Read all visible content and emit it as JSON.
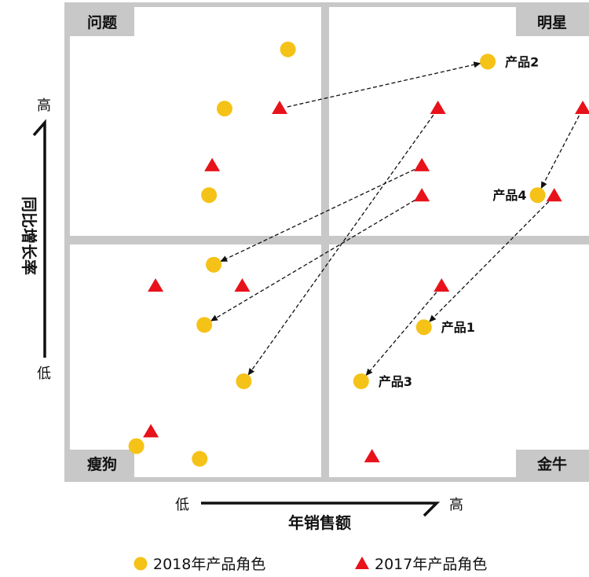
{
  "chart_data": {
    "type": "scatter",
    "xlabel": "年销售额",
    "ylabel": "同比增长率",
    "x_low": "低",
    "x_high": "高",
    "y_low": "低",
    "y_high": "高",
    "quadrants": {
      "top_left": "问题",
      "top_right": "明星",
      "bottom_left": "瘦狗",
      "bottom_right": "金牛"
    },
    "xlim": [
      0,
      100
    ],
    "ylim": [
      0,
      100
    ],
    "series": [
      {
        "name": "2018年产品角色",
        "marker": "circle",
        "color": "#F5C218",
        "points": [
          {
            "x": 42.0,
            "y": 91.0,
            "label": ""
          },
          {
            "x": 29.8,
            "y": 78.4,
            "label": ""
          },
          {
            "x": 26.8,
            "y": 60.0,
            "label": ""
          },
          {
            "x": 80.5,
            "y": 88.4,
            "label": "产品2"
          },
          {
            "x": 90.1,
            "y": 60.0,
            "label": "产品4"
          },
          {
            "x": 27.7,
            "y": 45.2,
            "label": ""
          },
          {
            "x": 25.9,
            "y": 32.4,
            "label": ""
          },
          {
            "x": 33.5,
            "y": 20.4,
            "label": ""
          },
          {
            "x": 68.2,
            "y": 31.9,
            "label": "产品1"
          },
          {
            "x": 56.1,
            "y": 20.4,
            "label": "产品3"
          },
          {
            "x": 12.8,
            "y": 6.6,
            "label": ""
          },
          {
            "x": 25.0,
            "y": 3.9,
            "label": ""
          }
        ]
      },
      {
        "name": "2017年产品角色",
        "marker": "triangle",
        "color": "#E8121A",
        "points": [
          {
            "x": 40.4,
            "y": 78.4
          },
          {
            "x": 70.9,
            "y": 78.4
          },
          {
            "x": 98.8,
            "y": 78.4
          },
          {
            "x": 27.4,
            "y": 66.2
          },
          {
            "x": 67.8,
            "y": 66.2
          },
          {
            "x": 67.8,
            "y": 59.8
          },
          {
            "x": 93.3,
            "y": 59.8
          },
          {
            "x": 16.5,
            "y": 40.6
          },
          {
            "x": 33.2,
            "y": 40.6
          },
          {
            "x": 71.6,
            "y": 40.6
          },
          {
            "x": 15.6,
            "y": 9.6
          },
          {
            "x": 58.2,
            "y": 4.3
          }
        ]
      }
    ],
    "arrows": [
      {
        "from": [
          40.4,
          78.4
        ],
        "to": [
          80.5,
          88.4
        ]
      },
      {
        "from": [
          98.8,
          78.4
        ],
        "to": [
          90.1,
          60.0
        ]
      },
      {
        "from": [
          93.3,
          59.8
        ],
        "to": [
          68.2,
          31.9
        ]
      },
      {
        "from": [
          71.6,
          40.6
        ],
        "to": [
          56.1,
          20.4
        ]
      },
      {
        "from": [
          70.9,
          78.4
        ],
        "to": [
          33.5,
          20.4
        ]
      },
      {
        "from": [
          67.8,
          66.2
        ],
        "to": [
          27.7,
          45.2
        ]
      },
      {
        "from": [
          67.8,
          59.8
        ],
        "to": [
          25.9,
          32.4
        ]
      }
    ],
    "legend": {
      "position": "bottom"
    },
    "grid": false
  }
}
